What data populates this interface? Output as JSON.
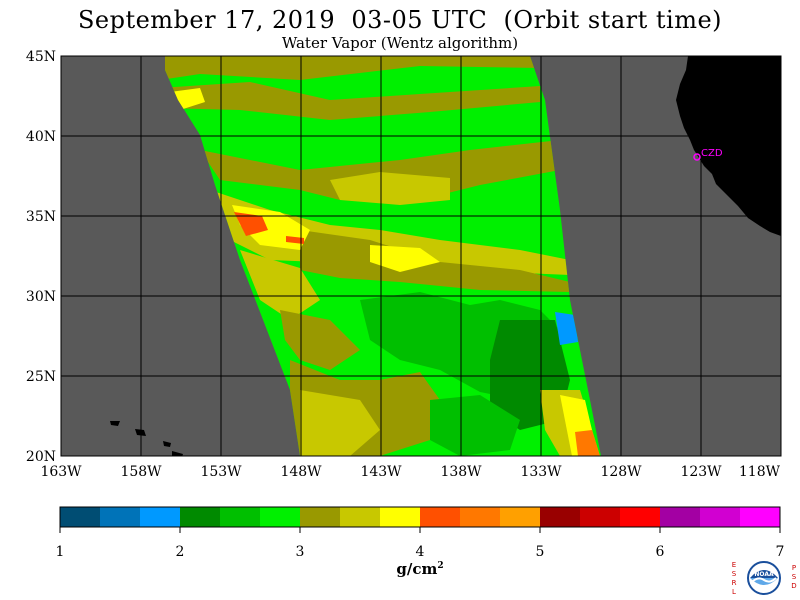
{
  "title": "September 17, 2019  03-05 UTC  (Orbit start time)",
  "subtitle": "Water Vapor (Wentz algorithm)",
  "map": {
    "lon_range": [
      -163,
      -118
    ],
    "lat_range": [
      20,
      45
    ],
    "lon_ticks": [
      "163W",
      "158W",
      "153W",
      "148W",
      "143W",
      "138W",
      "133W",
      "128W",
      "123W",
      "118W"
    ],
    "lat_ticks": [
      "45N",
      "40N",
      "35N",
      "30N",
      "25N",
      "20N"
    ],
    "station_label": "CZD",
    "colors": {
      "no_data": "#595959",
      "land": "#000000",
      "grid": "#000000",
      "station": "#ff00ff"
    }
  },
  "colorbar": {
    "units_base": "g/cm",
    "units_exp": "2",
    "labels": [
      "1",
      "2",
      "3",
      "4",
      "5",
      "6",
      "7"
    ],
    "range": [
      1,
      7
    ],
    "colors": [
      "#004d73",
      "#0073b8",
      "#0099ff",
      "#008a00",
      "#00bf00",
      "#00f000",
      "#999900",
      "#c8c800",
      "#ffff00",
      "#ff5000",
      "#ff7800",
      "#ffa000",
      "#990000",
      "#cc0000",
      "#ff0000",
      "#a300a3",
      "#d100d1",
      "#ff00ff"
    ]
  },
  "logo": {
    "left_letters": "ESRL",
    "right_letters": "PSD",
    "center_text": "NOAA"
  }
}
